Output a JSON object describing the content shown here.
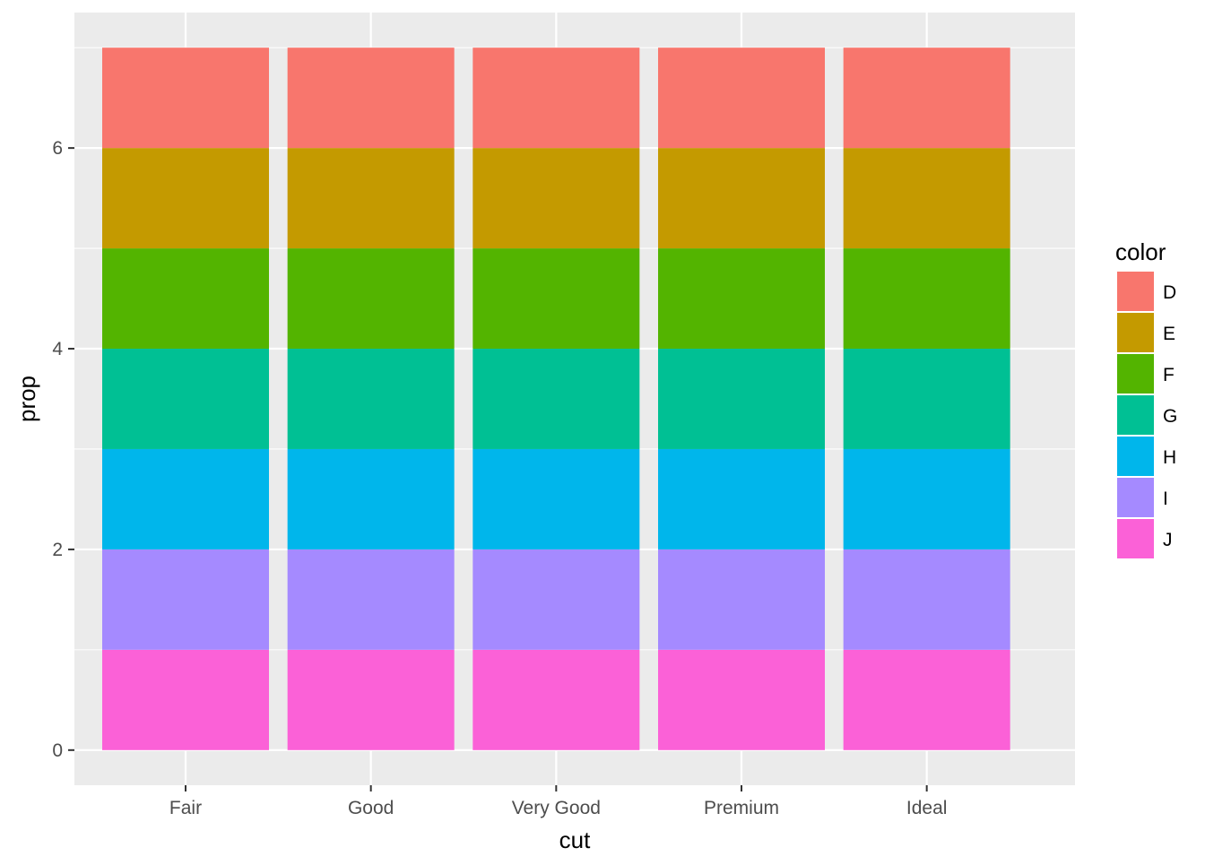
{
  "chart_data": {
    "type": "bar",
    "stacked": true,
    "categories": [
      "Fair",
      "Good",
      "Very Good",
      "Premium",
      "Ideal"
    ],
    "series": [
      {
        "name": "D",
        "color": "#F8766D",
        "values": [
          1,
          1,
          1,
          1,
          1
        ]
      },
      {
        "name": "E",
        "color": "#C49A00",
        "values": [
          1,
          1,
          1,
          1,
          1
        ]
      },
      {
        "name": "F",
        "color": "#53B400",
        "values": [
          1,
          1,
          1,
          1,
          1
        ]
      },
      {
        "name": "G",
        "color": "#00C094",
        "values": [
          1,
          1,
          1,
          1,
          1
        ]
      },
      {
        "name": "H",
        "color": "#00B6EB",
        "values": [
          1,
          1,
          1,
          1,
          1
        ]
      },
      {
        "name": "I",
        "color": "#A58AFF",
        "values": [
          1,
          1,
          1,
          1,
          1
        ]
      },
      {
        "name": "J",
        "color": "#FB61D7",
        "values": [
          1,
          1,
          1,
          1,
          1
        ]
      }
    ],
    "stack_order_bottom_to_top": [
      "J",
      "I",
      "H",
      "G",
      "F",
      "E",
      "D"
    ],
    "xlabel": "cut",
    "ylabel": "prop",
    "ylim": [
      -0.35,
      7.35
    ],
    "yticks": [
      0,
      2,
      4,
      6
    ],
    "y_minor_gridlines": [
      1,
      3,
      5,
      7
    ],
    "grid": true,
    "panel_background": "#EBEBEB",
    "gridline_color": "#FFFFFF",
    "legend": {
      "title": "color",
      "position": "right"
    }
  }
}
